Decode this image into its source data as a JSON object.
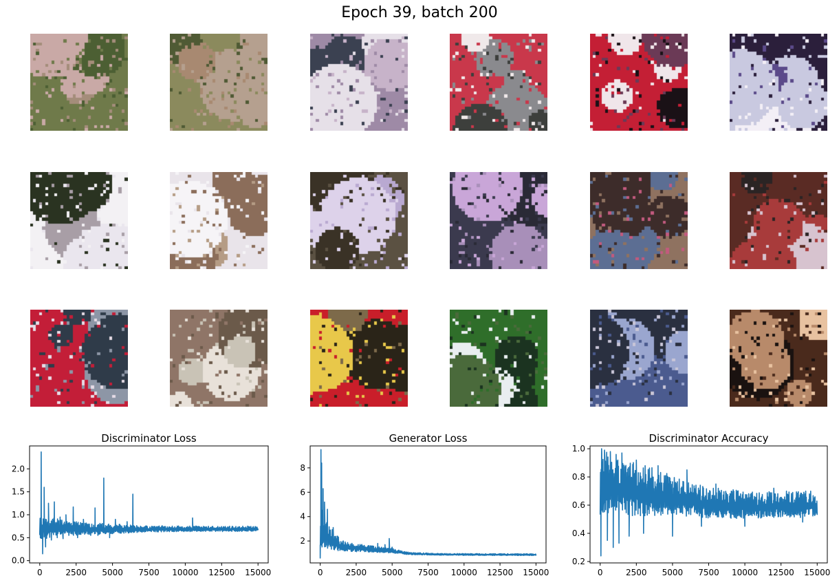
{
  "title": "Epoch 39, batch 200",
  "samples": {
    "rows": 3,
    "cols": 6,
    "tiles": [
      {
        "name": "sample-image-r1c1",
        "colors": [
          "#6f7a4a",
          "#a48d7a",
          "#4c5f33",
          "#c9a9a6"
        ]
      },
      {
        "name": "sample-image-r1c2",
        "colors": [
          "#8b8a5d",
          "#b5a08f",
          "#4f5a34",
          "#a88971"
        ]
      },
      {
        "name": "sample-image-r1c3",
        "colors": [
          "#9e8aa6",
          "#c7b3c9",
          "#3b4151",
          "#e6e0e8"
        ]
      },
      {
        "name": "sample-image-r1c4",
        "colors": [
          "#c9384b",
          "#8a8a8e",
          "#3d3f3c",
          "#f0e9ea"
        ]
      },
      {
        "name": "sample-image-r1c5",
        "colors": [
          "#c41f35",
          "#1a1116",
          "#f0e6ea",
          "#6b3a56"
        ]
      },
      {
        "name": "sample-image-r1c6",
        "colors": [
          "#2b1f3b",
          "#c9c9e0",
          "#5b4a8a",
          "#f3eff6"
        ]
      },
      {
        "name": "sample-image-r2c1",
        "colors": [
          "#f3f1f4",
          "#2a3321",
          "#a89ea6",
          "#eae6ee"
        ]
      },
      {
        "name": "sample-image-r2c2",
        "colors": [
          "#e9e4ea",
          "#b59c85",
          "#8b6d5a",
          "#f6f4f7"
        ]
      },
      {
        "name": "sample-image-r2c3",
        "colors": [
          "#5b5142",
          "#b9a9d1",
          "#ddd2ea",
          "#3a3226"
        ]
      },
      {
        "name": "sample-image-r2c4",
        "colors": [
          "#3b3a4e",
          "#c9a6d8",
          "#a88fb9",
          "#2a2a36"
        ]
      },
      {
        "name": "sample-image-r2c5",
        "colors": [
          "#8f7260",
          "#c25a7e",
          "#5c6e93",
          "#3d2c2a"
        ]
      },
      {
        "name": "sample-image-r2c6",
        "colors": [
          "#5a2b24",
          "#d7c3cf",
          "#2b2424",
          "#a83b3b"
        ]
      },
      {
        "name": "sample-image-r3c1",
        "colors": [
          "#c31e38",
          "#8d96a6",
          "#2f3b49",
          "#e6dce6"
        ]
      },
      {
        "name": "sample-image-r3c2",
        "colors": [
          "#8f7567",
          "#c9c3b6",
          "#6b5a4a",
          "#e8e1d9"
        ]
      },
      {
        "name": "sample-image-r3c3",
        "colors": [
          "#c91e2a",
          "#2a2418",
          "#e8c84a",
          "#7d6a4a"
        ]
      },
      {
        "name": "sample-image-r3c4",
        "colors": [
          "#2f6e2a",
          "#e9eef0",
          "#4a6a3b",
          "#1b3320"
        ]
      },
      {
        "name": "sample-image-r3c5",
        "colors": [
          "#4b5b8f",
          "#9aa6cf",
          "#2a3040",
          "#c9c6d8"
        ]
      },
      {
        "name": "sample-image-r3c6",
        "colors": [
          "#4a2a1c",
          "#e8c2a0",
          "#1a1210",
          "#b88a6a"
        ]
      }
    ]
  },
  "colors": {
    "line": "#1f77b4",
    "axis": "#000000"
  },
  "chart_data": [
    {
      "type": "line",
      "title": "Discriminator Loss",
      "xlabel": "",
      "ylabel": "",
      "xlim": [
        -700,
        15700
      ],
      "ylim": [
        -0.05,
        2.5
      ],
      "xticks": [
        0,
        2500,
        5000,
        7500,
        10000,
        12500,
        15000
      ],
      "yticks": [
        0.0,
        0.5,
        1.0,
        1.5,
        2.0
      ],
      "ytick_labels": [
        "0.0",
        "0.5",
        "1.0",
        "1.5",
        "2.0"
      ],
      "grid": false,
      "series": [
        {
          "values": {
            "x": [
              0,
              100,
              200,
              300,
              400,
              600,
              800,
              1000,
              1200,
              1400,
              1600,
              1800,
              2000,
              2300,
              2600,
              3000,
              3500,
              3800,
              4000,
              4400,
              4800,
              5200,
              5600,
              6000,
              6400,
              7000,
              8000,
              9000,
              10000,
              10500,
              11000,
              12000,
              13000,
              14000,
              15000
            ],
            "y": [
              0.62,
              2.37,
              0.15,
              1.6,
              0.3,
              1.25,
              0.45,
              1.28,
              0.5,
              0.95,
              0.48,
              1.0,
              0.55,
              1.17,
              0.5,
              0.9,
              0.55,
              1.15,
              0.55,
              1.8,
              0.5,
              0.9,
              0.6,
              0.85,
              1.45,
              0.7,
              0.68,
              0.7,
              0.68,
              0.93,
              0.68,
              0.7,
              0.68,
              0.7,
              0.68
            ],
            "band": [
              [
                0,
                0.35,
                0.95
              ],
              [
                1000,
                0.45,
                0.95
              ],
              [
                2500,
                0.5,
                0.85
              ],
              [
                5000,
                0.55,
                0.8
              ],
              [
                7500,
                0.6,
                0.76
              ],
              [
                15000,
                0.62,
                0.75
              ]
            ]
          }
        }
      ]
    },
    {
      "type": "line",
      "title": "Generator Loss",
      "xlabel": "",
      "ylabel": "",
      "xlim": [
        -700,
        15700
      ],
      "ylim": [
        0.2,
        9.8
      ],
      "xticks": [
        0,
        2500,
        5000,
        7500,
        10000,
        12500,
        15000
      ],
      "yticks": [
        2,
        4,
        6,
        8
      ],
      "ytick_labels": [
        "2",
        "4",
        "6",
        "8"
      ],
      "grid": false,
      "series": [
        {
          "values": {
            "x": [
              0,
              50,
              100,
              150,
              200,
              300,
              400,
              500,
              700,
              900,
              1200,
              1600,
              2000,
              2500,
              3000,
              3500,
              4000,
              4500,
              4800,
              5000,
              5500,
              6000,
              7000,
              8000,
              9000,
              10000,
              11000,
              12000,
              13000,
              14000,
              15000
            ],
            "y": [
              0.6,
              9.5,
              8.4,
              2.0,
              6.3,
              5.2,
              3.0,
              4.6,
              2.9,
              3.1,
              2.4,
              2.0,
              1.6,
              1.5,
              1.5,
              1.6,
              1.8,
              1.7,
              2.2,
              1.5,
              1.2,
              1.1,
              0.95,
              0.9,
              0.88,
              0.87,
              0.86,
              0.86,
              0.85,
              0.85,
              0.85
            ],
            "band": [
              [
                0,
                0.6,
                5.0
              ],
              [
                500,
                1.0,
                3.5
              ],
              [
                1500,
                1.0,
                2.0
              ],
              [
                3000,
                1.0,
                1.7
              ],
              [
                5000,
                0.95,
                1.4
              ],
              [
                6000,
                0.85,
                1.1
              ],
              [
                8000,
                0.8,
                0.98
              ],
              [
                15000,
                0.78,
                0.95
              ]
            ]
          }
        }
      ]
    },
    {
      "type": "line",
      "title": "Discriminator Accuracy",
      "xlabel": "",
      "ylabel": "",
      "xlim": [
        -700,
        15700
      ],
      "ylim": [
        0.19,
        1.02
      ],
      "xticks": [
        0,
        2500,
        5000,
        7500,
        10000,
        12500,
        15000
      ],
      "yticks": [
        0.2,
        0.4,
        0.6,
        0.8,
        1.0
      ],
      "ytick_labels": [
        "0.2",
        "0.4",
        "0.6",
        "0.8",
        "1.0"
      ],
      "grid": false,
      "series": [
        {
          "values": {
            "x": [
              0,
              50,
              100,
              200,
              300,
              500,
              700,
              900,
              1100,
              1300,
              1500,
              2000,
              2500,
              3000,
              4000,
              5000,
              6000,
              7000,
              8000,
              10000,
              12000,
              14000,
              15000
            ],
            "y": [
              0.55,
              0.24,
              1.0,
              0.55,
              0.99,
              0.35,
              0.98,
              0.3,
              0.96,
              0.33,
              0.97,
              0.38,
              0.92,
              0.4,
              0.88,
              0.38,
              0.85,
              0.45,
              0.75,
              0.45,
              0.72,
              0.48,
              0.55
            ],
            "band": [
              [
                0,
                0.45,
                1.0
              ],
              [
                1000,
                0.48,
                0.95
              ],
              [
                2500,
                0.45,
                0.9
              ],
              [
                5000,
                0.47,
                0.82
              ],
              [
                7500,
                0.47,
                0.73
              ],
              [
                10000,
                0.47,
                0.7
              ],
              [
                15000,
                0.48,
                0.7
              ]
            ]
          }
        }
      ]
    }
  ]
}
